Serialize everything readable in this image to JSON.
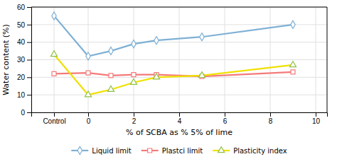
{
  "chart_data": {
    "type": "line",
    "x": [
      -1.5,
      0,
      1,
      2,
      3,
      5,
      9
    ],
    "series": [
      {
        "name": "Liquid limit",
        "color": "#7eb0d5",
        "marker": "diamond",
        "values": [
          55,
          32,
          35,
          39,
          41,
          43,
          50
        ]
      },
      {
        "name": "Plastci limit",
        "color": "#f47a7a",
        "marker": "square",
        "values": [
          22,
          22.5,
          21,
          21.5,
          21.5,
          20.5,
          23
        ]
      },
      {
        "name": "Plasticity index",
        "color": "#f0e000",
        "marker": "triangle",
        "colors": [
          "#90c040",
          "#90c040",
          "#90c040",
          "#90c040",
          "#90c040",
          "#90c040",
          "#90c040"
        ],
        "values": [
          33,
          10,
          13,
          17,
          20,
          21,
          27
        ]
      }
    ],
    "x_label": "% of SCBA as % 5% of lime",
    "y_label": "Water content (%)",
    "xlim": [
      -2.5,
      10.5
    ],
    "ylim": [
      0,
      60
    ],
    "xticks": [
      {
        "value": -1.5,
        "label": "Control"
      },
      0,
      2,
      4,
      6,
      8,
      10
    ],
    "yticks": [
      0,
      10,
      20,
      30,
      40,
      50,
      60
    ],
    "grid": true,
    "legend": "bottom"
  }
}
